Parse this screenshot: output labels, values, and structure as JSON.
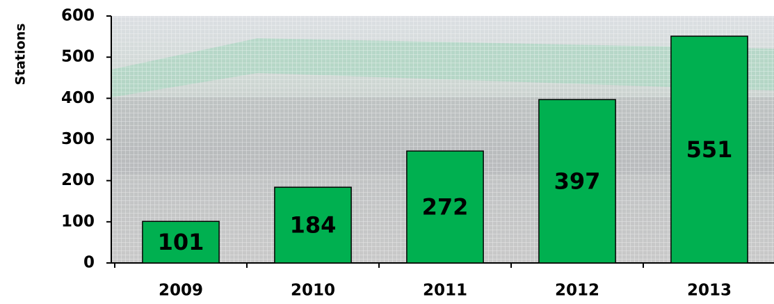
{
  "chart_data": {
    "type": "bar",
    "y_label": "Stations",
    "categories": [
      "2009",
      "2010",
      "2011",
      "2012",
      "2013"
    ],
    "values": [
      101,
      184,
      272,
      397,
      551
    ],
    "color": "#00b050",
    "ylim": [
      0,
      600
    ],
    "yticks": [
      0,
      100,
      200,
      300,
      400,
      500,
      600
    ]
  }
}
